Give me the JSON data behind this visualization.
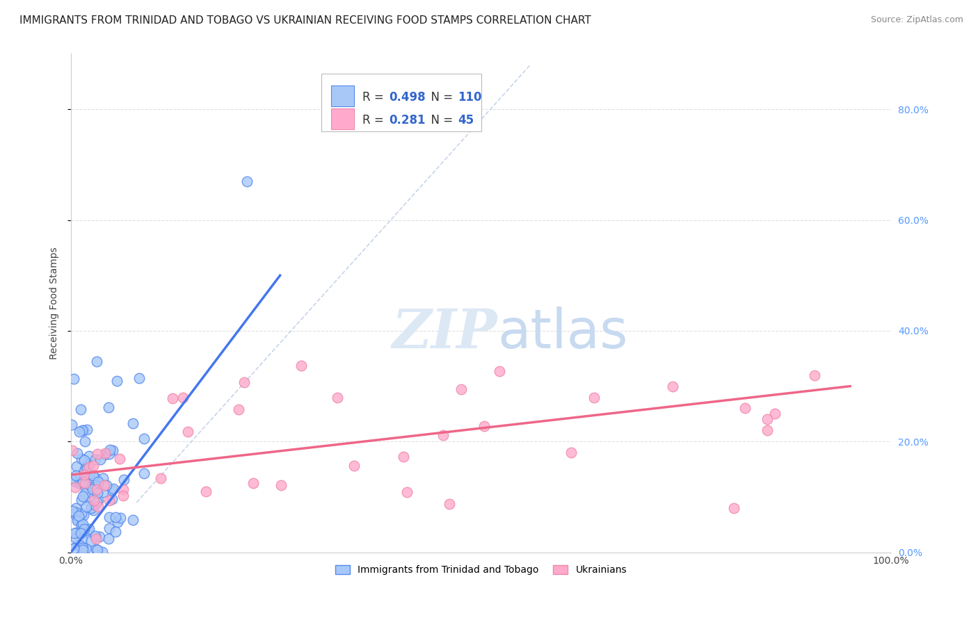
{
  "title": "IMMIGRANTS FROM TRINIDAD AND TOBAGO VS UKRAINIAN RECEIVING FOOD STAMPS CORRELATION CHART",
  "source": "Source: ZipAtlas.com",
  "ylabel": "Receiving Food Stamps",
  "yticks_labels": [
    "0.0%",
    "20.0%",
    "40.0%",
    "60.0%",
    "80.0%"
  ],
  "ytick_vals": [
    0.0,
    0.2,
    0.4,
    0.6,
    0.8
  ],
  "xlim": [
    0.0,
    1.0
  ],
  "ylim": [
    0.0,
    0.9
  ],
  "series1_color": "#a8c8f8",
  "series1_edge": "#5588ee",
  "series2_color": "#ffaacc",
  "series2_edge": "#ee88aa",
  "trendline1_color": "#4477ee",
  "trendline2_color": "#ee6688",
  "diagonal_color": "#c0d0e8",
  "background_color": "#ffffff",
  "grid_color": "#e0e0e0",
  "title_fontsize": 11,
  "source_fontsize": 9,
  "axis_label_fontsize": 10,
  "tick_fontsize": 10,
  "legend_text_color": "#3366cc",
  "watermark_color": "#dde8f5"
}
